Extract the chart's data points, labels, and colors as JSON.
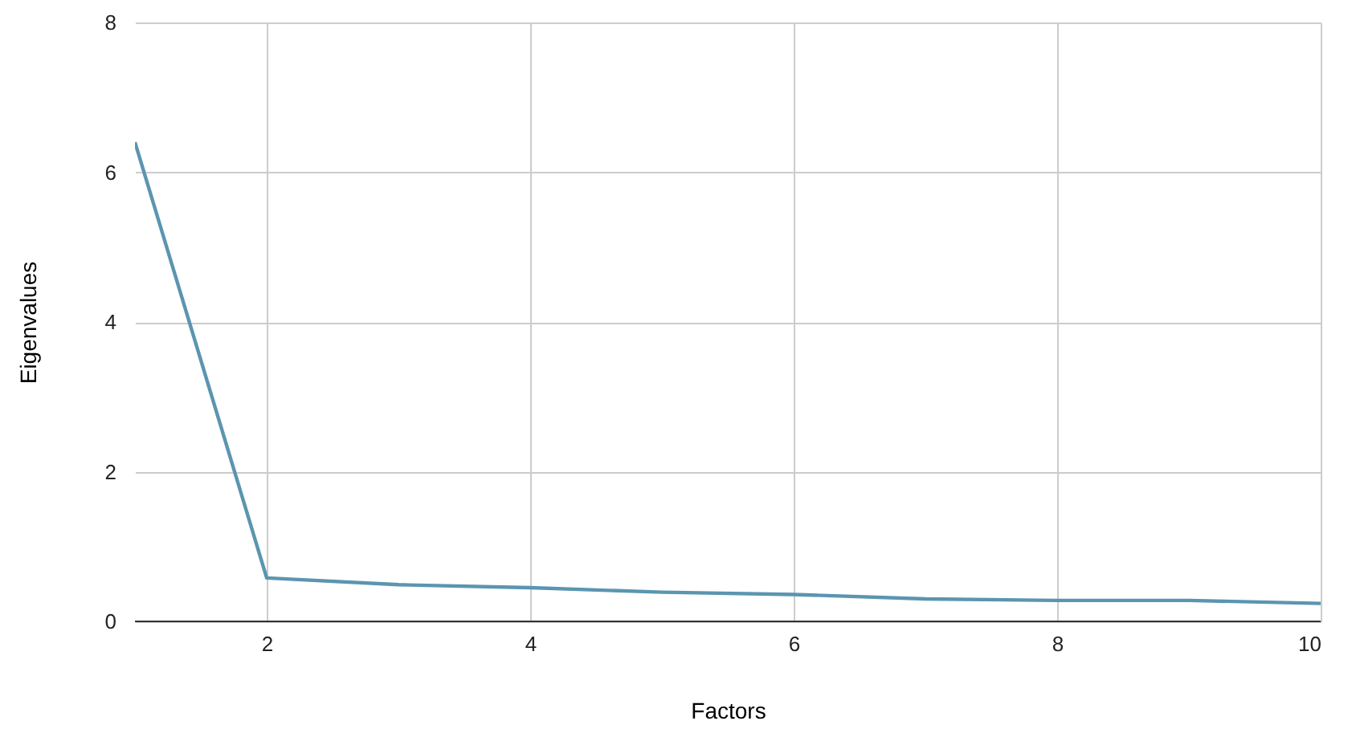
{
  "chart_data": {
    "type": "line",
    "xlabel": "Factors",
    "ylabel": "Eigenvalues",
    "x": [
      1,
      2,
      3,
      4,
      5,
      6,
      7,
      8,
      9,
      10
    ],
    "series": [
      {
        "color": "#5b95b0",
        "values": [
          6.4,
          0.58,
          0.49,
          0.45,
          0.39,
          0.36,
          0.3,
          0.28,
          0.28,
          0.24
        ]
      }
    ],
    "xlim": [
      1,
      10
    ],
    "xticks": [
      2,
      4,
      6,
      8,
      10
    ],
    "ylim": [
      0,
      8
    ],
    "yticks": [
      0,
      2,
      4,
      6,
      8
    ],
    "grid": true,
    "marker": "none",
    "line_style": "solid",
    "legend": false
  }
}
